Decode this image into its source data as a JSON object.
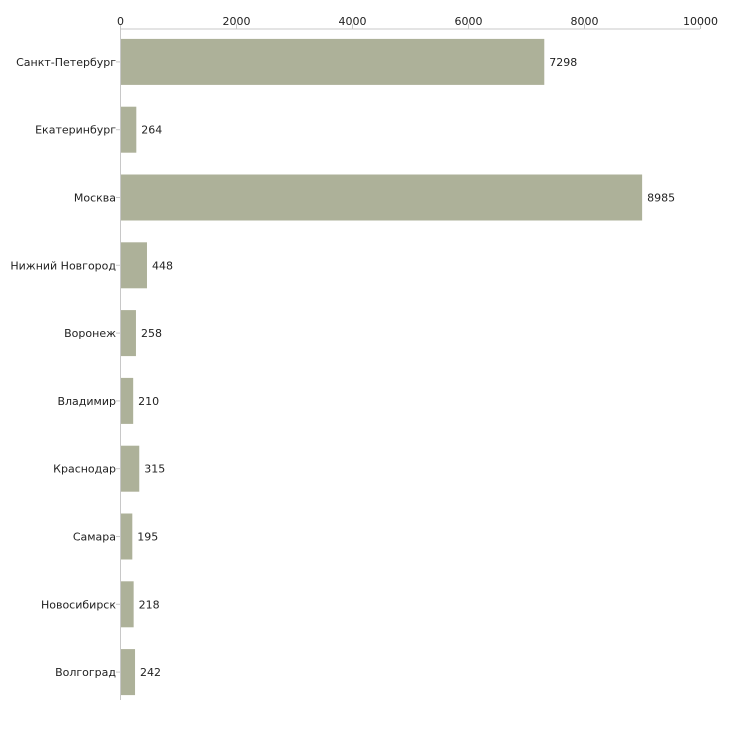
{
  "chart_data": {
    "type": "bar",
    "orientation": "horizontal",
    "title": "",
    "xlabel": "",
    "ylabel": "",
    "xlim": [
      0,
      10000
    ],
    "x_ticks": [
      0,
      2000,
      4000,
      6000,
      8000,
      10000
    ],
    "x_axis_position": "top",
    "grid": false,
    "legend": "none",
    "bar_color": "#adb199",
    "axis_color": "#c8c8c8",
    "categories": [
      "Санкт-Петербург",
      "Екатеринбург",
      "Москва",
      "Нижний Новгород",
      "Воронеж",
      "Владимир",
      "Краснодар",
      "Самара",
      "Новосибирск",
      "Волгоград"
    ],
    "values": [
      7298,
      264,
      8985,
      448,
      258,
      210,
      315,
      195,
      218,
      242
    ]
  }
}
